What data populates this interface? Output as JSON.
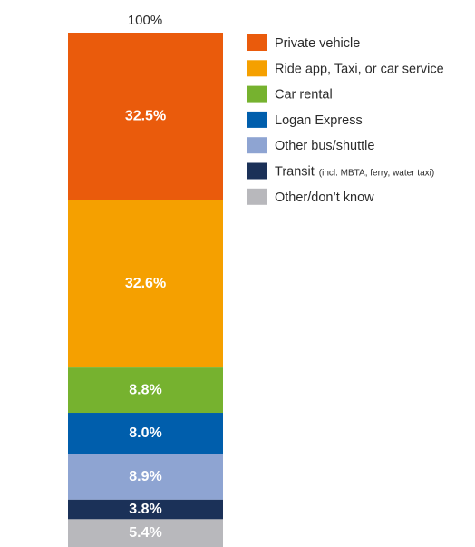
{
  "chart_data": {
    "type": "bar",
    "stacked": true,
    "orientation": "vertical",
    "total_label": "100%",
    "legend_position": "right",
    "series": [
      {
        "name": "Private vehicle",
        "note": "",
        "value": 32.5,
        "label": "32.5%",
        "color": "#ea5b0c"
      },
      {
        "name": "Ride app, Taxi, or car service",
        "note": "",
        "value": 32.6,
        "label": "32.6%",
        "color": "#f5a000"
      },
      {
        "name": "Car rental",
        "note": "",
        "value": 8.8,
        "label": "8.8%",
        "color": "#76b22f"
      },
      {
        "name": "Logan Express",
        "note": "",
        "value": 8.0,
        "label": "8.0%",
        "color": "#005eac"
      },
      {
        "name": "Other bus/shuttle",
        "note": "",
        "value": 8.9,
        "label": "8.9%",
        "color": "#8ea4d2"
      },
      {
        "name": "Transit",
        "note": "(incl. MBTA, ferry, water taxi)",
        "value": 3.8,
        "label": "3.8%",
        "color": "#1b3158"
      },
      {
        "name": "Other/don’t know",
        "note": "",
        "value": 5.4,
        "label": "5.4%",
        "color": "#b8b8bc"
      }
    ]
  }
}
